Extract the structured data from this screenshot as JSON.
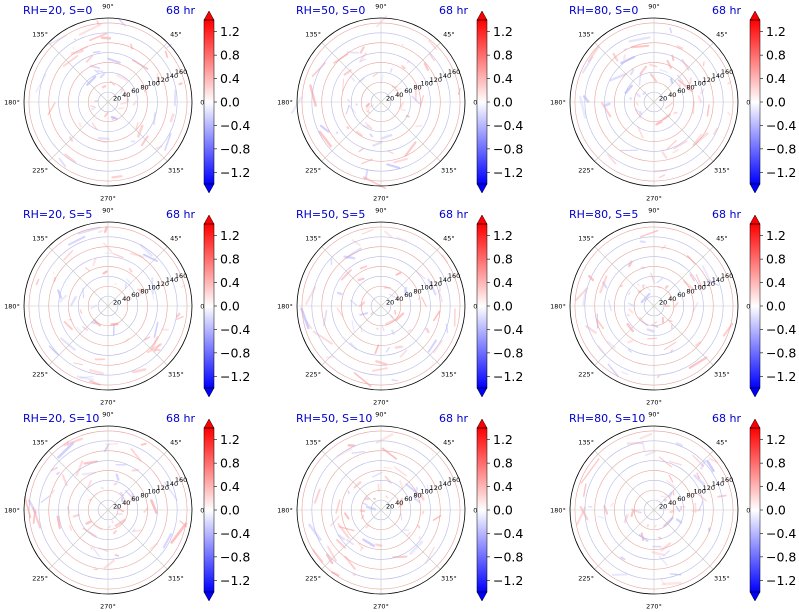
{
  "colormap": {
    "name": "bwr",
    "low_color": "#0000ff",
    "mid_color": "#ffffff",
    "high_color": "#ff0000",
    "extend": "both",
    "vmin": -1.4,
    "vmax": 1.4,
    "ticks": [
      "1.2",
      "0.8",
      "0.4",
      "0.0",
      "−0.4",
      "−0.8",
      "−1.2"
    ],
    "tick_values": [
      1.2,
      0.8,
      0.4,
      0.0,
      -0.4,
      -0.8,
      -1.2
    ]
  },
  "polar_axes": {
    "angle_labels": [
      "90°",
      "135°",
      "180°",
      "225°",
      "270°",
      "315°",
      "0°",
      "45°"
    ],
    "angle_values": [
      90,
      135,
      180,
      225,
      270,
      315,
      0,
      45
    ],
    "radial_labels": [
      "20",
      "40",
      "60",
      "80",
      "100",
      "120",
      "140",
      "160"
    ],
    "radial_values": [
      20,
      40,
      60,
      80,
      100,
      120,
      140,
      160
    ],
    "r_max": 170,
    "radial_label_angle_deg": 22.5
  },
  "chart_data": [
    {
      "type": "heatmap",
      "projection": "polar",
      "title": "RH=20, S=0",
      "time_label": "68 hr",
      "rh": 20,
      "s": 0
    },
    {
      "type": "heatmap",
      "projection": "polar",
      "title": "RH=50, S=0",
      "time_label": "68 hr",
      "rh": 50,
      "s": 0
    },
    {
      "type": "heatmap",
      "projection": "polar",
      "title": "RH=80, S=0",
      "time_label": "68 hr",
      "rh": 80,
      "s": 0
    },
    {
      "type": "heatmap",
      "projection": "polar",
      "title": "RH=20, S=5",
      "time_label": "68 hr",
      "rh": 20,
      "s": 5
    },
    {
      "type": "heatmap",
      "projection": "polar",
      "title": "RH=50, S=5",
      "time_label": "68 hr",
      "rh": 50,
      "s": 5
    },
    {
      "type": "heatmap",
      "projection": "polar",
      "title": "RH=80, S=5",
      "time_label": "68 hr",
      "rh": 80,
      "s": 5
    },
    {
      "type": "heatmap",
      "projection": "polar",
      "title": "RH=20, S=10",
      "time_label": "68 hr",
      "rh": 20,
      "s": 10
    },
    {
      "type": "heatmap",
      "projection": "polar",
      "title": "RH=50, S=10",
      "time_label": "68 hr",
      "rh": 50,
      "s": 10
    },
    {
      "type": "heatmap",
      "projection": "polar",
      "title": "RH=80, S=10",
      "time_label": "68 hr",
      "rh": 80,
      "s": 10
    }
  ]
}
